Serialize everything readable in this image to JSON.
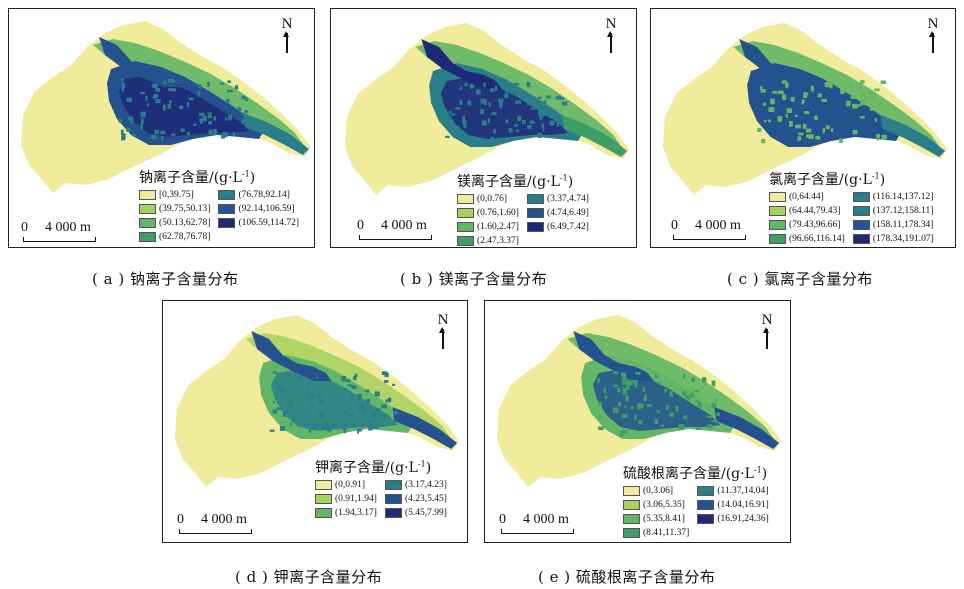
{
  "colors": {
    "c1": "#f1ec9c",
    "c2": "#a8d260",
    "c3": "#62b665",
    "c4": "#3f9e66",
    "c5": "#2a7e8a",
    "c6": "#24528f",
    "c7": "#1e2878"
  },
  "north_label": "N",
  "scale": {
    "zero": "0",
    "distance": "4 000 m"
  },
  "panels": [
    {
      "id": "a",
      "legend_title": "钠离子含量/(g·L",
      "legend_sup": "-1",
      "legend_title_end": ")",
      "classes": [
        "[0,39.75]",
        "(39.75,50.13]",
        "(50.13,62.78]",
        "(62.78,76.78]",
        "(76.78,92.14]",
        "(92.14,106.59]",
        "(106.59,114.72]"
      ],
      "caption": "( a )  钠离子含量分布"
    },
    {
      "id": "b",
      "legend_title": "镁离子含量/(g·L",
      "legend_sup": "-1",
      "legend_title_end": ")",
      "classes": [
        "(0,0.76]",
        "(0.76,1.60]",
        "(1.60,2.47]",
        "(2.47,3.37]",
        "(3.37,4.74]",
        "(4.74,6.49]",
        "(6.49,7.42]"
      ],
      "caption": "( b )  镁离子含量分布"
    },
    {
      "id": "c",
      "legend_title": "氯离子含量/(g·L",
      "legend_sup": "-1",
      "legend_title_end": ")",
      "classes": [
        "(0,64.44]",
        "(64.44,79.43]",
        "(79.43,96.66]",
        "(96.66,116.14]",
        "(116.14,137.12]",
        "(137.12,158.11]",
        "(158.11,178.34]",
        "(178.34,191.07]"
      ],
      "caption": "( c )  氯离子含量分布"
    },
    {
      "id": "d",
      "legend_title": "钾离子含量/(g·L",
      "legend_sup": "-1",
      "legend_title_end": ")",
      "classes": [
        "(0,0.91]",
        "(0.91,1.94]",
        "(1.94,3.17]",
        "(3.17,4.23]",
        "(4.23,5.45]",
        "(5.45,7.99]"
      ],
      "caption": "( d )  钾离子含量分布"
    },
    {
      "id": "e",
      "legend_title": "硫酸根离子含量/(g·L",
      "legend_sup": "-1",
      "legend_title_end": ")",
      "classes": [
        "(0,3.06]",
        "(3.06,5.35]",
        "(5.35,8.41]",
        "(8.41,11.37]",
        "(11.37,14.04]",
        "(14.04,16.91]",
        "(16.91,24.36]"
      ],
      "caption": "( e )  硫酸根离子含量分布"
    }
  ]
}
